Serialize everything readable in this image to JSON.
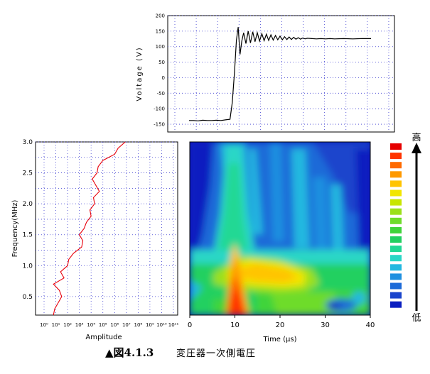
{
  "chart_data": [
    {
      "type": "line",
      "ylabel": "Voltage (V)",
      "yticks": [
        "200",
        "150",
        "100",
        "50",
        "0",
        "-50",
        "-100",
        "-150"
      ],
      "ylim": [
        -175,
        200
      ],
      "xlim": [
        0,
        40
      ],
      "grid": true,
      "x": [
        0,
        1,
        2,
        3,
        4,
        5,
        6,
        7,
        8,
        9,
        9.5,
        10,
        10.4,
        10.8,
        11.2,
        11.6,
        12,
        12.5,
        13,
        13.5,
        14,
        14.5,
        15,
        15.5,
        16,
        16.5,
        17,
        17.5,
        18,
        18.5,
        19,
        19.5,
        20,
        20.5,
        21,
        21.5,
        22,
        22.5,
        23,
        23.5,
        24,
        24.5,
        25,
        25.5,
        26,
        27,
        28,
        29,
        30,
        31,
        32,
        34,
        36,
        38,
        40
      ],
      "y": [
        -138,
        -138,
        -139,
        -137,
        -138,
        -138,
        -137,
        -138,
        -136,
        -134,
        -80,
        20,
        120,
        163,
        75,
        118,
        145,
        110,
        150,
        112,
        148,
        116,
        145,
        118,
        142,
        119,
        140,
        120,
        138,
        121,
        136,
        122,
        134,
        122,
        132,
        123,
        131,
        123,
        130,
        124,
        129,
        124,
        128,
        125,
        127,
        126,
        125,
        126,
        125,
        126,
        125,
        126,
        125,
        126,
        126
      ],
      "color": "#000000"
    },
    {
      "type": "line",
      "xlabel": "Amplitude",
      "ylabel": "Frequency(MHz)",
      "yticks": [
        "3.0",
        "2.5",
        "2.0",
        "1.5",
        "1.0",
        "0.5"
      ],
      "xticks": [
        "10⁰",
        "10¹",
        "10²",
        "10³",
        "10⁴",
        "10⁵",
        "10⁶",
        "10⁷",
        "10⁸",
        "10⁹",
        "10¹⁰",
        "10¹¹"
      ],
      "ylim": [
        0.2,
        3.0
      ],
      "xlim": [
        0,
        11
      ],
      "grid": true,
      "freq": [
        0.2,
        0.3,
        0.4,
        0.5,
        0.6,
        0.7,
        0.8,
        0.9,
        1.0,
        1.1,
        1.2,
        1.3,
        1.4,
        1.5,
        1.6,
        1.7,
        1.8,
        1.9,
        2.0,
        2.1,
        2.2,
        2.3,
        2.4,
        2.5,
        2.6,
        2.7,
        2.8,
        2.9,
        2.95,
        3.0
      ],
      "log_amplitude": [
        0.8,
        0.9,
        1.2,
        1.5,
        1.3,
        0.8,
        1.7,
        1.4,
        2.0,
        2.1,
        2.5,
        3.2,
        3.3,
        3.0,
        3.4,
        3.6,
        4.0,
        3.9,
        4.3,
        4.2,
        4.7,
        4.4,
        4.1,
        4.5,
        4.6,
        5.0,
        6.0,
        6.3,
        6.6,
        6.9
      ],
      "color": "#e8000b"
    },
    {
      "type": "heatmap",
      "xlabel": "Time (μs)",
      "xticks": [
        "0",
        "10",
        "20",
        "30",
        "40"
      ],
      "xlim": [
        0,
        40
      ],
      "colorbar_high": "高",
      "colorbar_low": "低",
      "colorscale": [
        "#e60000",
        "#ff3300",
        "#ff6a00",
        "#ff9900",
        "#ffc400",
        "#f2e600",
        "#c8e600",
        "#9be01a",
        "#6edc2a",
        "#3fd43a",
        "#22d060",
        "#22d894",
        "#2ad7c6",
        "#22b8e0",
        "#1f90e0",
        "#1c6ad8",
        "#1a44cc",
        "#0a1ec0"
      ]
    }
  ],
  "caption": {
    "figure": "▲図4.1.3",
    "text": "変圧器一次側電圧"
  }
}
